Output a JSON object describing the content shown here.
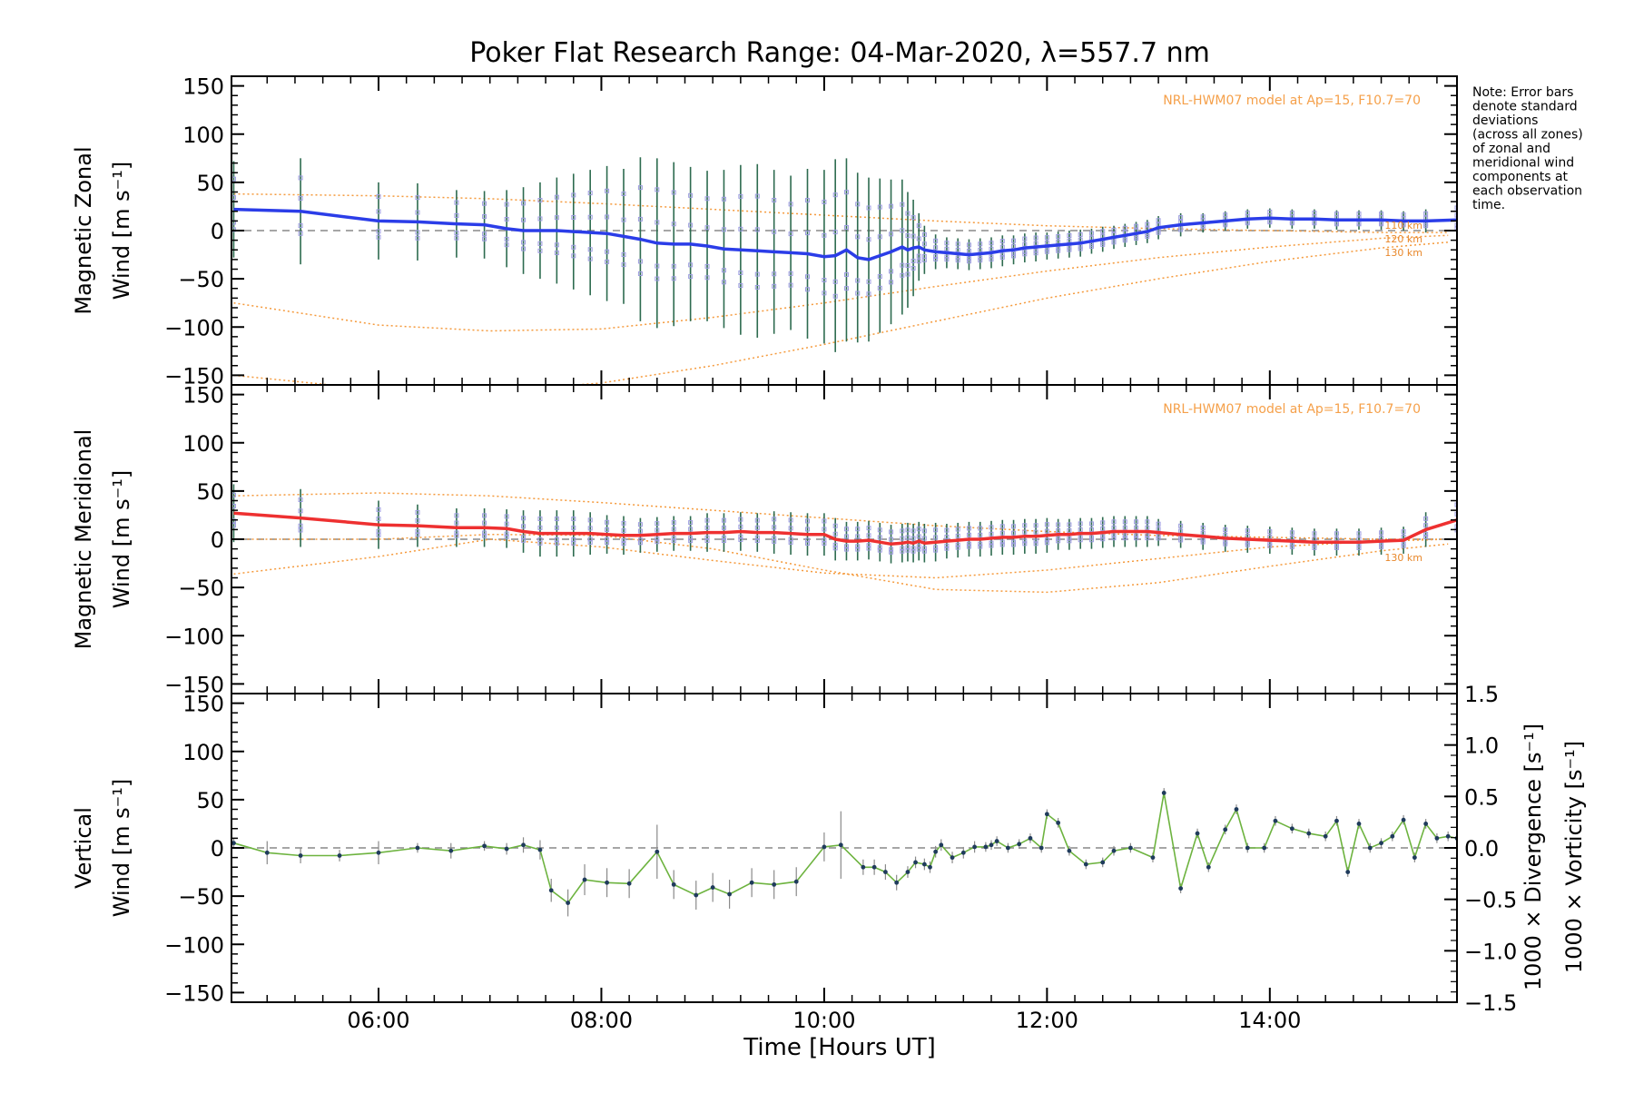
{
  "chart_data": {
    "title": "Poker Flat Research Range: 04-Mar-2020, λ=557.7 nm",
    "note_lines": [
      "Note: Error bars",
      "denote standard",
      "deviations",
      "(across all zones)",
      "of zonal and",
      "meridional wind",
      "components at",
      "each observation",
      "time."
    ],
    "xlabel": "Time [Hours UT]",
    "x_range": [
      4.68,
      15.68
    ],
    "x_tick_labels": [
      {
        "value": 6,
        "label": "06:00"
      },
      {
        "value": 8,
        "label": "08:00"
      },
      {
        "value": 10,
        "label": "10:00"
      },
      {
        "value": 12,
        "label": "12:00"
      },
      {
        "value": 14,
        "label": "14:00"
      }
    ],
    "y_tick_labels": [
      "150",
      "100",
      "50",
      "0",
      "−50",
      "−100",
      "−150"
    ],
    "right_tick_labels": [
      "1.5",
      "1.0",
      "0.5",
      "0.0",
      "−0.5",
      "−1.0",
      "−1.5"
    ],
    "colors": {
      "zonal": "#2b3de8",
      "meridional": "#ee3030",
      "vertical": "#6db33f",
      "model": "#f59a3c",
      "error_bar": "#2d6b4f",
      "zone_marker": "#9d9ce0",
      "divergence": "#5ab4e0",
      "vorticity": "#f0638a"
    },
    "panels": [
      {
        "id": "zonal",
        "type": "line",
        "ylabel_line1": "Magnetic Zonal",
        "ylabel_line2": "Wind [m s⁻¹]",
        "ylim": [
          -160,
          160
        ],
        "model_note": "NRL-HWM07 model at Ap=15, F10.7=70",
        "model_altitude_labels": [
          "110 km",
          "120 km",
          "130 km"
        ],
        "model_curves": [
          {
            "x": [
              4.7,
              6,
              7,
              8,
              9,
              10,
              11,
              12,
              13,
              14,
              15,
              15.6
            ],
            "y": [
              38,
              36,
              33,
              28,
              22,
              16,
              10,
              5,
              2,
              0,
              -2,
              -2
            ]
          },
          {
            "x": [
              4.7,
              6,
              7,
              8,
              9,
              10,
              11,
              12,
              13,
              14,
              15,
              15.6
            ],
            "y": [
              -75,
              -98,
              -104,
              -102,
              -90,
              -75,
              -58,
              -42,
              -28,
              -17,
              -8,
              -5
            ]
          },
          {
            "x": [
              4.7,
              6,
              7,
              8,
              9,
              10,
              11,
              12,
              13,
              14,
              15,
              15.6
            ],
            "y": [
              -150,
              -165,
              -167,
              -158,
              -140,
              -118,
              -94,
              -70,
              -50,
              -32,
              -18,
              -12
            ]
          }
        ],
        "series": {
          "x": [
            4.7,
            5.3,
            6.0,
            6.35,
            6.7,
            6.95,
            7.15,
            7.3,
            7.45,
            7.6,
            7.75,
            7.9,
            8.05,
            8.2,
            8.35,
            8.5,
            8.65,
            8.8,
            8.95,
            9.1,
            9.25,
            9.4,
            9.55,
            9.7,
            9.85,
            10.0,
            10.1,
            10.2,
            10.3,
            10.4,
            10.5,
            10.6,
            10.7,
            10.75,
            10.8,
            10.85,
            10.9,
            11.0,
            11.1,
            11.2,
            11.3,
            11.4,
            11.5,
            11.6,
            11.7,
            11.8,
            11.9,
            12.0,
            12.1,
            12.2,
            12.3,
            12.4,
            12.5,
            12.6,
            12.7,
            12.8,
            12.9,
            13.0,
            13.2,
            13.4,
            13.6,
            13.8,
            14.0,
            14.2,
            14.4,
            14.6,
            14.8,
            15.0,
            15.2,
            15.4,
            15.68
          ],
          "y": [
            22,
            20,
            10,
            9,
            7,
            6,
            2,
            0,
            0,
            0,
            -1,
            -2,
            -3,
            -6,
            -9,
            -13,
            -14,
            -14,
            -16,
            -19,
            -20,
            -21,
            -22,
            -23,
            -24,
            -27,
            -26,
            -20,
            -28,
            -30,
            -26,
            -22,
            -17,
            -20,
            -18,
            -17,
            -20,
            -22,
            -23,
            -24,
            -25,
            -24,
            -23,
            -21,
            -20,
            -18,
            -17,
            -16,
            -15,
            -14,
            -13,
            -11,
            -9,
            -7,
            -5,
            -3,
            -1,
            3,
            6,
            8,
            10,
            12,
            13,
            12,
            12,
            11,
            11,
            11,
            10,
            10,
            11
          ],
          "err": [
            50,
            55,
            40,
            40,
            35,
            35,
            40,
            45,
            50,
            55,
            60,
            65,
            70,
            70,
            85,
            88,
            85,
            80,
            78,
            82,
            88,
            90,
            85,
            80,
            88,
            90,
            100,
            95,
            88,
            85,
            80,
            75,
            70,
            60,
            50,
            35,
            25,
            18,
            16,
            16,
            16,
            16,
            16,
            16,
            15,
            15,
            15,
            14,
            14,
            14,
            14,
            13,
            13,
            12,
            12,
            12,
            12,
            12,
            12,
            10,
            10,
            10,
            10,
            10,
            10,
            10,
            10,
            10,
            10,
            12,
            20
          ]
        }
      },
      {
        "id": "meridional",
        "type": "line",
        "ylabel_line1": "Magnetic Meridional",
        "ylabel_line2": "Wind [m s⁻¹]",
        "ylim": [
          -160,
          160
        ],
        "model_note": "NRL-HWM07 model at Ap=15, F10.7=70",
        "model_altitude_labels": [
          "130 km"
        ],
        "model_curves": [
          {
            "x": [
              4.7,
              6,
              7,
              8,
              9,
              10,
              11,
              12,
              13,
              14,
              15,
              15.6
            ],
            "y": [
              45,
              48,
              45,
              38,
              30,
              22,
              14,
              8,
              4,
              2,
              0,
              0
            ]
          },
          {
            "x": [
              4.7,
              6,
              7,
              8,
              9,
              10,
              11,
              12,
              13,
              14,
              15,
              15.6
            ],
            "y": [
              -36,
              -18,
              0,
              -8,
              -22,
              -35,
              -40,
              -32,
              -20,
              -8,
              -2,
              0
            ]
          },
          {
            "x": [
              4.7,
              6,
              7,
              8,
              9,
              10,
              11,
              12,
              13,
              14,
              15,
              15.6
            ],
            "y": [
              0,
              0,
              5,
              4,
              -10,
              -32,
              -52,
              -55,
              -45,
              -28,
              -12,
              -5
            ]
          }
        ],
        "series": {
          "x": [
            4.7,
            5.3,
            6.0,
            6.35,
            6.7,
            6.95,
            7.15,
            7.3,
            7.45,
            7.6,
            7.75,
            7.9,
            8.05,
            8.2,
            8.35,
            8.5,
            8.65,
            8.8,
            8.95,
            9.1,
            9.25,
            9.4,
            9.55,
            9.7,
            9.85,
            10.0,
            10.1,
            10.2,
            10.3,
            10.4,
            10.5,
            10.6,
            10.7,
            10.75,
            10.8,
            10.85,
            10.9,
            11.0,
            11.1,
            11.2,
            11.3,
            11.4,
            11.5,
            11.6,
            11.7,
            11.8,
            11.9,
            12.0,
            12.1,
            12.2,
            12.3,
            12.4,
            12.5,
            12.6,
            12.7,
            12.8,
            12.9,
            13.0,
            13.2,
            13.4,
            13.6,
            13.8,
            14.0,
            14.2,
            14.4,
            14.6,
            14.8,
            15.0,
            15.2,
            15.4,
            15.68
          ],
          "y": [
            27,
            22,
            15,
            14,
            12,
            12,
            11,
            8,
            6,
            6,
            6,
            6,
            5,
            4,
            4,
            5,
            6,
            6,
            7,
            7,
            8,
            7,
            7,
            6,
            5,
            5,
            0,
            -2,
            -2,
            -1,
            -3,
            -5,
            -4,
            -3,
            -4,
            -2,
            -4,
            -3,
            -2,
            -1,
            0,
            0,
            1,
            2,
            2,
            3,
            3,
            4,
            5,
            5,
            6,
            6,
            7,
            8,
            8,
            8,
            8,
            7,
            5,
            3,
            1,
            0,
            -1,
            -2,
            -3,
            -3,
            -3,
            -2,
            -1,
            10,
            20
          ],
          "err": [
            30,
            30,
            25,
            22,
            20,
            20,
            20,
            22,
            24,
            24,
            24,
            22,
            20,
            20,
            18,
            18,
            18,
            18,
            20,
            20,
            20,
            20,
            22,
            22,
            22,
            22,
            22,
            20,
            20,
            20,
            20,
            20,
            20,
            20,
            20,
            20,
            20,
            20,
            18,
            18,
            18,
            18,
            18,
            18,
            18,
            18,
            18,
            18,
            16,
            16,
            16,
            16,
            16,
            16,
            16,
            16,
            16,
            14,
            14,
            14,
            14,
            14,
            14,
            14,
            14,
            14,
            14,
            14,
            14,
            18,
            25
          ]
        }
      },
      {
        "id": "vertical",
        "type": "line",
        "ylabel_line1": "Vertical",
        "ylabel_line2": "Wind [m s⁻¹]",
        "right_label_divergence": "1000 × Divergence [s⁻¹]",
        "right_label_vorticity": "1000 × Vorticity [s⁻¹]",
        "ylim": [
          -160,
          160
        ],
        "right_ylim": [
          -1.5,
          1.5
        ],
        "series": {
          "x": [
            4.7,
            5.0,
            5.3,
            5.65,
            6.0,
            6.35,
            6.65,
            6.95,
            7.15,
            7.3,
            7.45,
            7.55,
            7.7,
            7.85,
            8.05,
            8.25,
            8.5,
            8.65,
            8.85,
            9.0,
            9.15,
            9.35,
            9.55,
            9.75,
            10.0,
            10.15,
            10.35,
            10.45,
            10.55,
            10.65,
            10.75,
            10.82,
            10.9,
            10.95,
            11.0,
            11.05,
            11.15,
            11.25,
            11.35,
            11.45,
            11.5,
            11.55,
            11.65,
            11.75,
            11.85,
            11.95,
            12.0,
            12.1,
            12.2,
            12.35,
            12.5,
            12.6,
            12.75,
            12.95,
            13.05,
            13.2,
            13.35,
            13.45,
            13.6,
            13.7,
            13.8,
            13.95,
            14.05,
            14.2,
            14.35,
            14.5,
            14.6,
            14.7,
            14.8,
            14.9,
            15.0,
            15.1,
            15.2,
            15.3,
            15.4,
            15.5,
            15.6,
            15.68
          ],
          "y": [
            5,
            -5,
            -8,
            -8,
            -5,
            0,
            -3,
            2,
            -1,
            3,
            -2,
            -44,
            -57,
            -33,
            -36,
            -37,
            -4,
            -38,
            -49,
            -41,
            -48,
            -36,
            -38,
            -35,
            1,
            3,
            -20,
            -20,
            -25,
            -36,
            -25,
            -15,
            -17,
            -20,
            -4,
            3,
            -10,
            -5,
            1,
            1,
            3,
            7,
            0,
            4,
            10,
            0,
            35,
            26,
            -3,
            -17,
            -15,
            -3,
            0,
            -10,
            57,
            -42,
            15,
            -20,
            19,
            40,
            0,
            0,
            28,
            20,
            15,
            12,
            28,
            -25,
            25,
            0,
            5,
            12,
            29,
            -10,
            25,
            10,
            12,
            10
          ],
          "err": [
            5,
            12,
            8,
            6,
            12,
            5,
            8,
            5,
            6,
            8,
            10,
            12,
            14,
            16,
            15,
            15,
            28,
            15,
            15,
            15,
            15,
            15,
            15,
            15,
            15,
            35,
            8,
            8,
            8,
            8,
            6,
            6,
            6,
            6,
            6,
            6,
            6,
            6,
            6,
            5,
            5,
            5,
            5,
            5,
            5,
            5,
            5,
            5,
            5,
            5,
            5,
            5,
            5,
            5,
            5,
            5,
            5,
            5,
            5,
            5,
            5,
            5,
            5,
            5,
            5,
            5,
            5,
            5,
            5,
            5,
            5,
            5,
            5,
            5,
            5,
            5,
            5,
            5
          ]
        }
      }
    ]
  }
}
